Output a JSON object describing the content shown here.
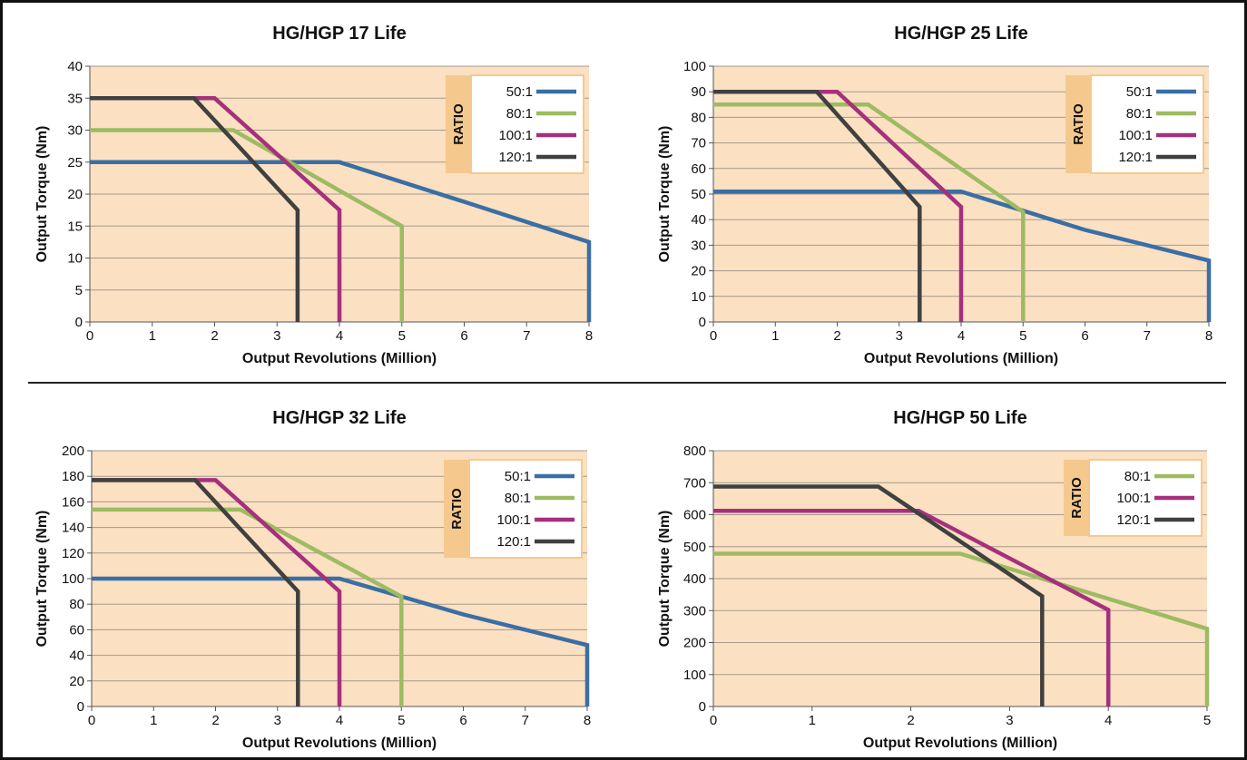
{
  "chart_data": [
    {
      "type": "line",
      "title": "HG/HGP 17 Life",
      "xlabel": "Output Revolutions (Million)",
      "ylabel": "Output Torque (Nm)",
      "xlim": [
        0,
        8
      ],
      "ylim": [
        0,
        40
      ],
      "xticks": [
        0,
        1,
        2,
        3,
        4,
        5,
        6,
        7,
        8
      ],
      "yticks": [
        0,
        5,
        10,
        15,
        20,
        25,
        30,
        35,
        40
      ],
      "grid": true,
      "legend": {
        "title": "RATIO",
        "position": "top-right"
      },
      "series": [
        {
          "name": "50:1",
          "color": "#3A6EA5",
          "points": [
            [
              0,
              25
            ],
            [
              4,
              25
            ],
            [
              6,
              18.8
            ],
            [
              8,
              12.5
            ],
            [
              8,
              0
            ]
          ]
        },
        {
          "name": "80:1",
          "color": "#9DBB61",
          "points": [
            [
              0,
              30
            ],
            [
              2.3,
              30
            ],
            [
              5,
              15
            ],
            [
              5,
              0
            ]
          ]
        },
        {
          "name": "100:1",
          "color": "#A5307C",
          "points": [
            [
              0,
              35
            ],
            [
              2,
              35
            ],
            [
              4,
              17.5
            ],
            [
              4,
              0
            ]
          ]
        },
        {
          "name": "120:1",
          "color": "#404040",
          "points": [
            [
              0,
              35
            ],
            [
              1.67,
              35
            ],
            [
              3.33,
              17.5
            ],
            [
              3.33,
              0
            ]
          ]
        }
      ]
    },
    {
      "type": "line",
      "title": "HG/HGP 25 Life",
      "xlabel": "Output Revolutions (Million)",
      "ylabel": "Output Torque (Nm)",
      "xlim": [
        0,
        8
      ],
      "ylim": [
        0,
        100
      ],
      "xticks": [
        0,
        1,
        2,
        3,
        4,
        5,
        6,
        7,
        8
      ],
      "yticks": [
        0,
        10,
        20,
        30,
        40,
        50,
        60,
        70,
        80,
        90,
        100
      ],
      "grid": true,
      "legend": {
        "title": "RATIO",
        "position": "top-right"
      },
      "series": [
        {
          "name": "50:1",
          "color": "#3A6EA5",
          "points": [
            [
              0,
              51
            ],
            [
              4,
              51
            ],
            [
              6,
              36
            ],
            [
              8,
              24
            ],
            [
              8,
              0
            ]
          ]
        },
        {
          "name": "80:1",
          "color": "#9DBB61",
          "points": [
            [
              0,
              85
            ],
            [
              2.5,
              85
            ],
            [
              5,
              43
            ],
            [
              5,
              0
            ]
          ]
        },
        {
          "name": "100:1",
          "color": "#A5307C",
          "points": [
            [
              0,
              90
            ],
            [
              2,
              90
            ],
            [
              4,
              45
            ],
            [
              4,
              0
            ]
          ]
        },
        {
          "name": "120:1",
          "color": "#404040",
          "points": [
            [
              0,
              90
            ],
            [
              1.67,
              90
            ],
            [
              3.33,
              45
            ],
            [
              3.33,
              0
            ]
          ]
        }
      ]
    },
    {
      "type": "line",
      "title": "HG/HGP 32 Life",
      "xlabel": "Output Revolutions (Million)",
      "ylabel": "Output Torque (Nm)",
      "xlim": [
        0,
        8
      ],
      "ylim": [
        0,
        200
      ],
      "xticks": [
        0,
        1,
        2,
        3,
        4,
        5,
        6,
        7,
        8
      ],
      "yticks": [
        0,
        20,
        40,
        60,
        80,
        100,
        120,
        140,
        160,
        180,
        200
      ],
      "grid": true,
      "legend": {
        "title": "RATIO",
        "position": "top-right"
      },
      "series": [
        {
          "name": "50:1",
          "color": "#3A6EA5",
          "points": [
            [
              0,
              100
            ],
            [
              4,
              100
            ],
            [
              6,
              72
            ],
            [
              8,
              48
            ],
            [
              8,
              0
            ]
          ]
        },
        {
          "name": "80:1",
          "color": "#9DBB61",
          "points": [
            [
              0,
              154
            ],
            [
              2.4,
              154
            ],
            [
              5,
              86
            ],
            [
              5,
              0
            ]
          ]
        },
        {
          "name": "100:1",
          "color": "#A5307C",
          "points": [
            [
              0,
              177
            ],
            [
              2,
              177
            ],
            [
              4,
              90
            ],
            [
              4,
              0
            ]
          ]
        },
        {
          "name": "120:1",
          "color": "#404040",
          "points": [
            [
              0,
              177
            ],
            [
              1.67,
              177
            ],
            [
              3.33,
              90
            ],
            [
              3.33,
              0
            ]
          ]
        }
      ]
    },
    {
      "type": "line",
      "title": "HG/HGP 50 Life",
      "xlabel": "Output Revolutions (Million)",
      "ylabel": "Output Torque (Nm)",
      "xlim": [
        0,
        5
      ],
      "ylim": [
        0,
        800
      ],
      "xticks": [
        0,
        1,
        2,
        3,
        4,
        5
      ],
      "yticks": [
        0,
        100,
        200,
        300,
        400,
        500,
        600,
        700,
        800
      ],
      "grid": true,
      "legend": {
        "title": "RATIO",
        "position": "top-right"
      },
      "series": [
        {
          "name": "80:1",
          "color": "#9DBB61",
          "points": [
            [
              0,
              478
            ],
            [
              2.5,
              478
            ],
            [
              5,
              243
            ],
            [
              5,
              0
            ]
          ]
        },
        {
          "name": "100:1",
          "color": "#A5307C",
          "points": [
            [
              0,
              612
            ],
            [
              2.08,
              612
            ],
            [
              4,
              302
            ],
            [
              4,
              0
            ]
          ]
        },
        {
          "name": "120:1",
          "color": "#404040",
          "points": [
            [
              0,
              688
            ],
            [
              1.67,
              688
            ],
            [
              3.33,
              345
            ],
            [
              3.33,
              0
            ]
          ]
        }
      ]
    }
  ]
}
